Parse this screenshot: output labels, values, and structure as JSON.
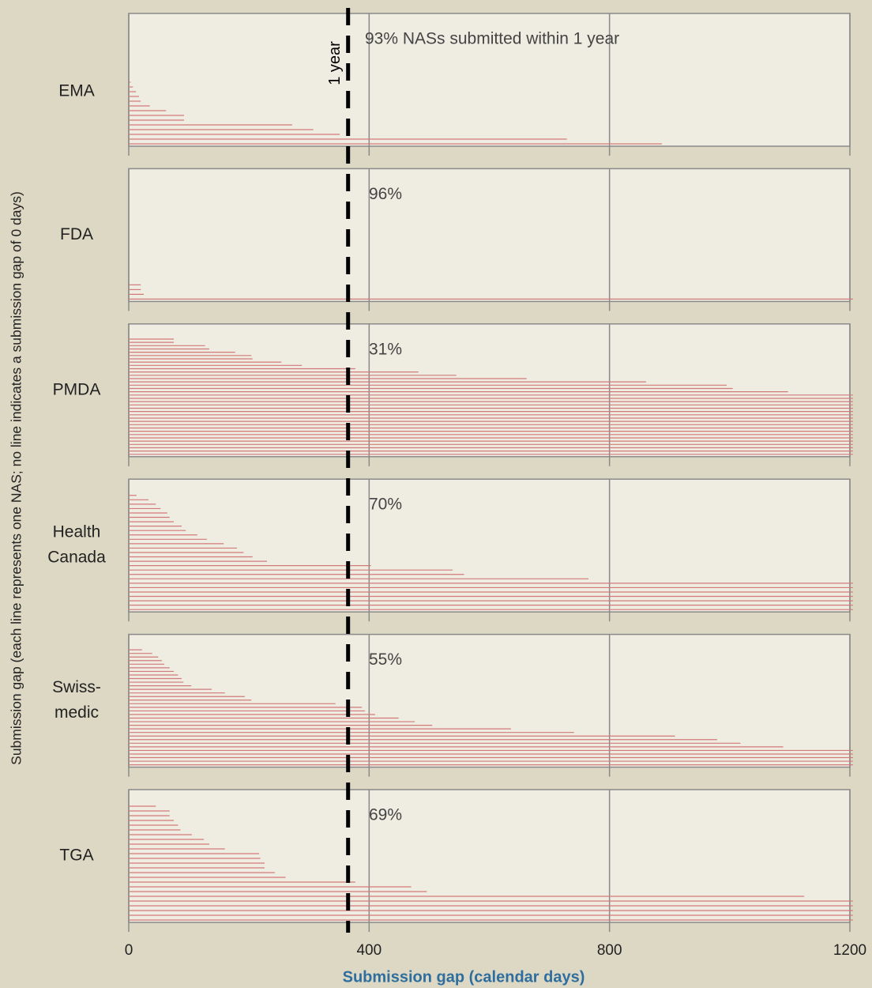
{
  "chart_data": {
    "type": "bar",
    "orientation": "horizontal",
    "x_label": "Submission gap (calendar days)",
    "y_label": "Submission gap (each line represents one NAS; no line indicates a submission gap of 0 days)",
    "xlim": [
      0,
      1200
    ],
    "xticks": [
      0,
      400,
      800,
      1200
    ],
    "grid": true,
    "color": "#d27a7a",
    "reference": {
      "value": 365,
      "label": "1 year"
    },
    "panels": [
      {
        "label": [
          "EMA"
        ],
        "annotation": "93% NASs submitted within 1 year",
        "values": [
          3,
          7,
          12,
          17,
          20,
          35,
          62,
          92,
          92,
          272,
          307,
          351,
          729,
          887
        ]
      },
      {
        "label": [
          "FDA"
        ],
        "annotation": "96%",
        "values": [
          20,
          20,
          25,
          1205
        ]
      },
      {
        "label": [
          "PMDA"
        ],
        "annotation": "31%",
        "values": [
          75,
          75,
          127,
          134,
          177,
          204,
          206,
          254,
          288,
          377,
          482,
          545,
          662,
          861,
          995,
          1005,
          1097,
          1205,
          1205,
          1205,
          1205,
          1205,
          1205,
          1205,
          1205,
          1205,
          1205,
          1205,
          1205,
          1205,
          1205,
          1205,
          1205,
          1205,
          1205,
          1205
        ]
      },
      {
        "label": [
          "Health",
          "Canada"
        ],
        "annotation": "70%",
        "values": [
          13,
          33,
          45,
          53,
          64,
          68,
          75,
          88,
          95,
          114,
          130,
          158,
          180,
          191,
          206,
          230,
          403,
          539,
          558,
          765,
          1205,
          1205,
          1205,
          1205,
          1205,
          1205,
          1205
        ]
      },
      {
        "label": [
          "Swiss-",
          "medic"
        ],
        "annotation": "55%",
        "values": [
          22,
          39,
          49,
          55,
          59,
          68,
          75,
          82,
          88,
          91,
          104,
          138,
          160,
          193,
          204,
          344,
          388,
          393,
          410,
          449,
          476,
          505,
          636,
          741,
          909,
          979,
          1018,
          1089,
          1205,
          1205,
          1205,
          1205,
          1205
        ]
      },
      {
        "label": [
          "TGA"
        ],
        "annotation": "69%",
        "values": [
          45,
          68,
          68,
          75,
          82,
          86,
          105,
          125,
          134,
          160,
          217,
          219,
          226,
          226,
          243,
          261,
          377,
          470,
          496,
          1124,
          1205,
          1205,
          1205,
          1205,
          1205
        ]
      }
    ]
  }
}
